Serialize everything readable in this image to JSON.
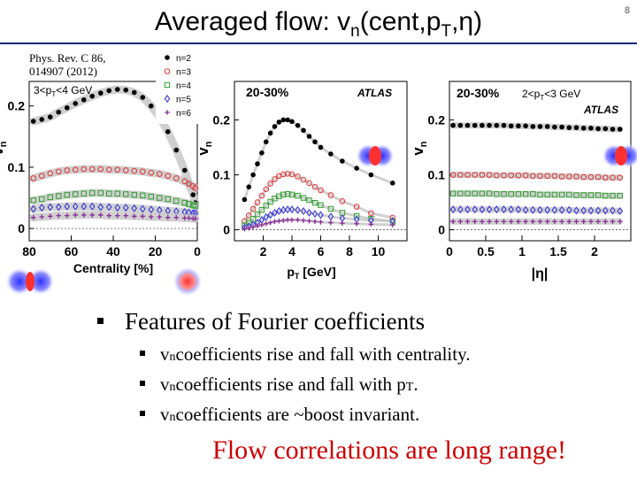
{
  "slide": {
    "number": "8",
    "title_pre": "Averaged flow: v",
    "title_sub": "n",
    "title_post": "(cent,p",
    "title_sub2": "T",
    "title_end": ",η)"
  },
  "reference": {
    "line1": "Phys. Rev. C 86,",
    "line2": "014907 (2012)"
  },
  "bullets": {
    "main": "Features of  Fourier coefficients",
    "items": [
      {
        "pre": "v",
        "sub": "n",
        "text": " coefficients rise and fall with centrality."
      },
      {
        "pre": "v",
        "sub": "n",
        "text": " coefficients rise and fall with p",
        "sub2": "T",
        "end": "."
      },
      {
        "pre": "v",
        "sub": "n",
        "text": " coefficients are ~boost invariant."
      }
    ]
  },
  "highlight": "Flow correlations are long range!",
  "colors": {
    "n2": "#000000",
    "n3": "#e23030",
    "n4": "#2aa02a",
    "n5": "#2a2adc",
    "n6": "#8a2a9a",
    "title_rule": "#1a2a7a",
    "highlight": "#cc0000"
  },
  "chart_data": [
    {
      "type": "scatter",
      "label_left": "3<p",
      "label_sub": "T",
      "label_right": "<4 GeV",
      "xlabel": "Centrality [%]",
      "ylabel": "v",
      "ylabel_sub": "n",
      "xlim": [
        80,
        0
      ],
      "ylim": [
        -0.02,
        0.24
      ],
      "xticks": [
        "80",
        "60",
        "40",
        "20",
        "0"
      ],
      "yticks": [
        "0",
        "0.1",
        "0.2"
      ],
      "legend": [
        "n=2",
        "n=3",
        "n=4",
        "n=5",
        "n=6"
      ],
      "series": [
        {
          "name": "n=2",
          "x": [
            78,
            74,
            70,
            66,
            62,
            58,
            54,
            50,
            46,
            42,
            38,
            34,
            30,
            26,
            22,
            18,
            14,
            10,
            6,
            4,
            2,
            1
          ],
          "values": [
            0.175,
            0.178,
            0.182,
            0.19,
            0.197,
            0.204,
            0.21,
            0.216,
            0.221,
            0.225,
            0.227,
            0.226,
            0.222,
            0.214,
            0.2,
            0.182,
            0.158,
            0.128,
            0.095,
            0.074,
            0.055,
            0.042
          ]
        },
        {
          "name": "n=3",
          "x": [
            78,
            74,
            70,
            66,
            62,
            58,
            54,
            50,
            46,
            42,
            38,
            34,
            30,
            26,
            22,
            18,
            14,
            10,
            6,
            4,
            2,
            1
          ],
          "values": [
            0.082,
            0.086,
            0.09,
            0.093,
            0.095,
            0.096,
            0.097,
            0.097,
            0.097,
            0.096,
            0.096,
            0.095,
            0.094,
            0.093,
            0.091,
            0.089,
            0.086,
            0.082,
            0.077,
            0.073,
            0.069,
            0.066
          ]
        },
        {
          "name": "n=4",
          "x": [
            78,
            74,
            70,
            66,
            62,
            58,
            54,
            50,
            46,
            42,
            38,
            34,
            30,
            26,
            22,
            18,
            14,
            10,
            6,
            4,
            2,
            1
          ],
          "values": [
            0.046,
            0.048,
            0.051,
            0.053,
            0.055,
            0.056,
            0.057,
            0.058,
            0.058,
            0.057,
            0.057,
            0.056,
            0.055,
            0.054,
            0.052,
            0.05,
            0.048,
            0.045,
            0.042,
            0.04,
            0.038,
            0.037
          ]
        },
        {
          "name": "n=5",
          "x": [
            78,
            74,
            70,
            66,
            62,
            58,
            54,
            50,
            46,
            42,
            38,
            34,
            30,
            26,
            22,
            18,
            14,
            10,
            6,
            4,
            2,
            1
          ],
          "values": [
            0.032,
            0.034,
            0.035,
            0.035,
            0.036,
            0.036,
            0.036,
            0.036,
            0.035,
            0.035,
            0.034,
            0.034,
            0.033,
            0.032,
            0.031,
            0.03,
            0.029,
            0.028,
            0.027,
            0.026,
            0.025,
            0.025
          ]
        },
        {
          "name": "n=6",
          "x": [
            78,
            74,
            70,
            66,
            62,
            58,
            54,
            50,
            46,
            42,
            38,
            34,
            30,
            26,
            22,
            18,
            14,
            10,
            6,
            4,
            2,
            1
          ],
          "values": [
            0.018,
            0.019,
            0.02,
            0.021,
            0.021,
            0.022,
            0.022,
            0.022,
            0.022,
            0.021,
            0.021,
            0.021,
            0.02,
            0.02,
            0.019,
            0.019,
            0.018,
            0.018,
            0.017,
            0.017,
            0.016,
            0.016
          ]
        }
      ]
    },
    {
      "type": "scatter",
      "label": "20-30%",
      "atlas": "ATLAS",
      "xlabel": "p",
      "xlabel_sub": "T",
      "xlabel_unit": " [GeV]",
      "ylabel": "v",
      "ylabel_sub": "n",
      "xlim": [
        0,
        12
      ],
      "ylim": [
        -0.02,
        0.27
      ],
      "xticks": [
        "2",
        "4",
        "6",
        "8",
        "10"
      ],
      "yticks": [
        "0",
        "0.1",
        "0.2"
      ],
      "series": [
        {
          "name": "n=2",
          "x": [
            0.7,
            1.0,
            1.3,
            1.6,
            1.9,
            2.2,
            2.5,
            2.8,
            3.1,
            3.4,
            3.7,
            4.0,
            4.4,
            4.8,
            5.2,
            5.6,
            6.0,
            6.7,
            7.5,
            8.5,
            9.5,
            11
          ],
          "values": [
            0.055,
            0.078,
            0.1,
            0.12,
            0.14,
            0.16,
            0.176,
            0.188,
            0.196,
            0.2,
            0.2,
            0.197,
            0.19,
            0.181,
            0.17,
            0.16,
            0.15,
            0.138,
            0.125,
            0.112,
            0.1,
            0.085
          ]
        },
        {
          "name": "n=3",
          "x": [
            0.7,
            1.0,
            1.3,
            1.6,
            1.9,
            2.2,
            2.5,
            2.8,
            3.1,
            3.4,
            3.7,
            4.0,
            4.4,
            4.8,
            5.2,
            5.6,
            6.0,
            6.7,
            7.5,
            8.5,
            9.5,
            11
          ],
          "values": [
            0.016,
            0.026,
            0.038,
            0.05,
            0.062,
            0.074,
            0.084,
            0.092,
            0.098,
            0.101,
            0.102,
            0.101,
            0.097,
            0.091,
            0.085,
            0.078,
            0.072,
            0.063,
            0.052,
            0.042,
            0.03,
            0.022
          ]
        },
        {
          "name": "n=4",
          "x": [
            0.7,
            1.0,
            1.3,
            1.6,
            1.9,
            2.2,
            2.5,
            2.8,
            3.1,
            3.4,
            3.7,
            4.0,
            4.4,
            4.8,
            5.2,
            5.6,
            6.0,
            6.7,
            7.5,
            8.5,
            9.5,
            11
          ],
          "values": [
            0.008,
            0.013,
            0.02,
            0.028,
            0.036,
            0.044,
            0.051,
            0.057,
            0.061,
            0.064,
            0.065,
            0.064,
            0.062,
            0.058,
            0.054,
            0.049,
            0.045,
            0.038,
            0.031,
            0.025,
            0.02,
            0.015
          ]
        },
        {
          "name": "n=5",
          "x": [
            0.7,
            1.0,
            1.3,
            1.6,
            1.9,
            2.2,
            2.5,
            2.8,
            3.1,
            3.4,
            3.7,
            4.0,
            4.4,
            4.8,
            5.2,
            5.6,
            6.0,
            6.7,
            7.5,
            8.5,
            9.5,
            11
          ],
          "values": [
            0.004,
            0.006,
            0.009,
            0.013,
            0.018,
            0.023,
            0.027,
            0.031,
            0.034,
            0.036,
            0.037,
            0.037,
            0.036,
            0.034,
            0.031,
            0.029,
            0.027,
            0.024,
            0.021,
            0.019,
            0.017,
            0.016
          ]
        },
        {
          "name": "n=6",
          "x": [
            0.7,
            1.0,
            1.3,
            1.6,
            1.9,
            2.2,
            2.5,
            2.8,
            3.1,
            3.4,
            3.7,
            4.0,
            4.4,
            4.8,
            5.2,
            5.6,
            6.0,
            6.7,
            7.5,
            8.5,
            9.5,
            11
          ],
          "values": [
            0.002,
            0.003,
            0.005,
            0.007,
            0.009,
            0.011,
            0.013,
            0.015,
            0.016,
            0.017,
            0.018,
            0.018,
            0.018,
            0.017,
            0.016,
            0.015,
            0.014,
            0.013,
            0.012,
            0.011,
            0.01,
            0.009
          ]
        }
      ]
    },
    {
      "type": "scatter",
      "label": "20-30%",
      "label2_left": "2<p",
      "label2_sub": "T",
      "label2_right": "<3 GeV",
      "atlas": "ATLAS",
      "xlabel": "|η|",
      "ylabel": "v",
      "ylabel_sub": "n",
      "xlim": [
        0,
        2.5
      ],
      "ylim": [
        -0.02,
        0.27
      ],
      "xticks": [
        "0",
        "0.5",
        "1",
        "1.5",
        "2"
      ],
      "yticks": [
        "0",
        "0.1",
        "0.2"
      ],
      "series": [
        {
          "name": "n=2",
          "x": [
            0.05,
            0.15,
            0.25,
            0.35,
            0.45,
            0.55,
            0.65,
            0.75,
            0.85,
            0.95,
            1.05,
            1.15,
            1.25,
            1.35,
            1.45,
            1.55,
            1.65,
            1.75,
            1.85,
            1.95,
            2.05,
            2.15,
            2.25,
            2.35
          ],
          "values": [
            0.19,
            0.19,
            0.19,
            0.19,
            0.19,
            0.19,
            0.19,
            0.19,
            0.189,
            0.189,
            0.189,
            0.188,
            0.188,
            0.188,
            0.187,
            0.187,
            0.186,
            0.186,
            0.185,
            0.185,
            0.184,
            0.184,
            0.183,
            0.183
          ]
        },
        {
          "name": "n=3",
          "x": [
            0.05,
            0.15,
            0.25,
            0.35,
            0.45,
            0.55,
            0.65,
            0.75,
            0.85,
            0.95,
            1.05,
            1.15,
            1.25,
            1.35,
            1.45,
            1.55,
            1.65,
            1.75,
            1.85,
            1.95,
            2.05,
            2.15,
            2.25,
            2.35
          ],
          "values": [
            0.1,
            0.1,
            0.1,
            0.1,
            0.1,
            0.1,
            0.099,
            0.099,
            0.099,
            0.099,
            0.099,
            0.098,
            0.098,
            0.098,
            0.098,
            0.097,
            0.097,
            0.097,
            0.096,
            0.096,
            0.096,
            0.095,
            0.095,
            0.095
          ]
        },
        {
          "name": "n=4",
          "x": [
            0.05,
            0.15,
            0.25,
            0.35,
            0.45,
            0.55,
            0.65,
            0.75,
            0.85,
            0.95,
            1.05,
            1.15,
            1.25,
            1.35,
            1.45,
            1.55,
            1.65,
            1.75,
            1.85,
            1.95,
            2.05,
            2.15,
            2.25,
            2.35
          ],
          "values": [
            0.066,
            0.066,
            0.066,
            0.066,
            0.066,
            0.066,
            0.065,
            0.065,
            0.065,
            0.065,
            0.065,
            0.065,
            0.064,
            0.064,
            0.064,
            0.064,
            0.064,
            0.063,
            0.063,
            0.063,
            0.063,
            0.062,
            0.062,
            0.062
          ]
        },
        {
          "name": "n=5",
          "x": [
            0.05,
            0.15,
            0.25,
            0.35,
            0.45,
            0.55,
            0.65,
            0.75,
            0.85,
            0.95,
            1.05,
            1.15,
            1.25,
            1.35,
            1.45,
            1.55,
            1.65,
            1.75,
            1.85,
            1.95,
            2.05,
            2.15,
            2.25,
            2.35
          ],
          "values": [
            0.037,
            0.037,
            0.037,
            0.037,
            0.037,
            0.037,
            0.037,
            0.037,
            0.037,
            0.037,
            0.036,
            0.036,
            0.036,
            0.036,
            0.036,
            0.036,
            0.036,
            0.035,
            0.035,
            0.035,
            0.035,
            0.035,
            0.035,
            0.034
          ]
        },
        {
          "name": "n=6",
          "x": [
            0.05,
            0.15,
            0.25,
            0.35,
            0.45,
            0.55,
            0.65,
            0.75,
            0.85,
            0.95,
            1.05,
            1.15,
            1.25,
            1.35,
            1.45,
            1.55,
            1.65,
            1.75,
            1.85,
            1.95,
            2.05,
            2.15,
            2.25,
            2.35
          ],
          "values": [
            0.015,
            0.015,
            0.015,
            0.015,
            0.015,
            0.015,
            0.015,
            0.015,
            0.015,
            0.015,
            0.015,
            0.015,
            0.015,
            0.015,
            0.015,
            0.015,
            0.015,
            0.015,
            0.015,
            0.015,
            0.015,
            0.015,
            0.015,
            0.015
          ]
        }
      ]
    }
  ]
}
